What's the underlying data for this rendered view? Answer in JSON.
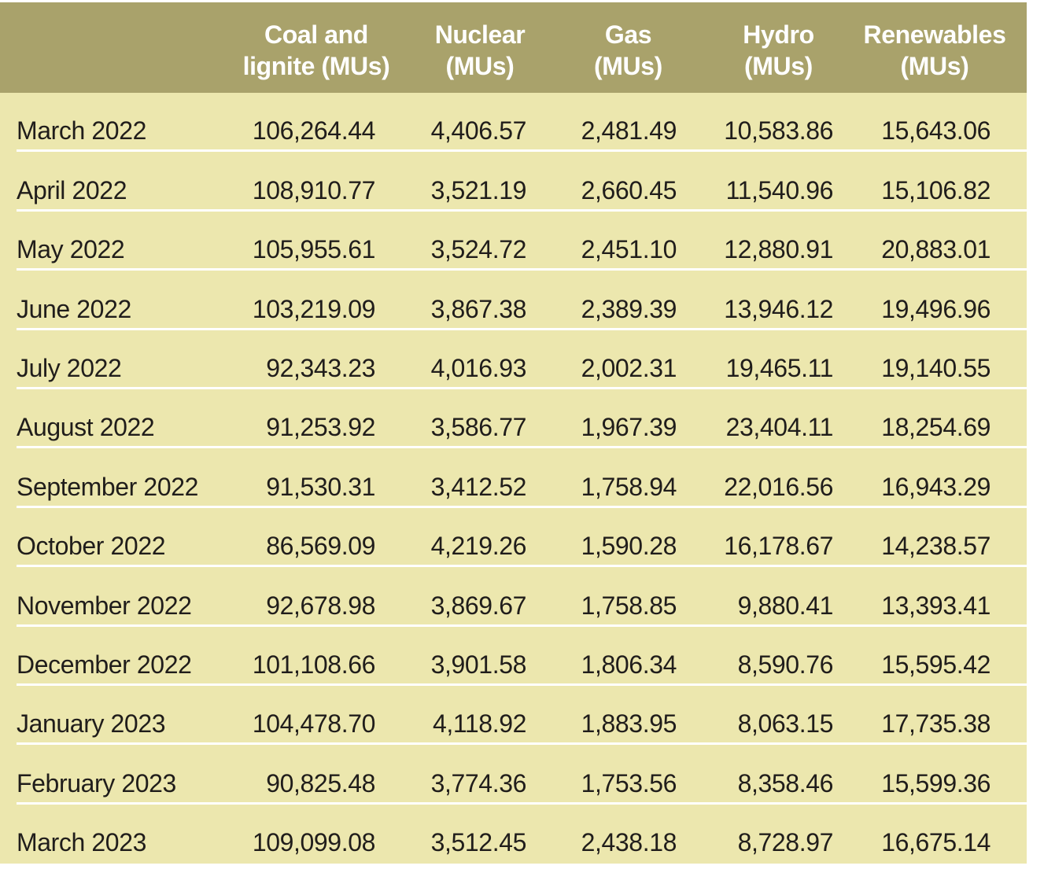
{
  "colors": {
    "header_bg": "#a9a26b",
    "body_bg": "#ece7ae",
    "header_text": "#ffffff",
    "body_text": "#201d1b",
    "separator": "#ffffff"
  },
  "table": {
    "headers": [
      {
        "line1": "",
        "line2": ""
      },
      {
        "line1": "Coal and",
        "line2": "lignite (MUs)"
      },
      {
        "line1": "Nuclear",
        "line2": "(MUs)"
      },
      {
        "line1": "Gas",
        "line2": "(MUs)"
      },
      {
        "line1": "Hydro",
        "line2": "(MUs)"
      },
      {
        "line1": "Renewables",
        "line2": "(MUs)"
      }
    ],
    "rows": [
      {
        "month": "March 2022",
        "coal": "106,264.44",
        "nuclear": "4,406.57",
        "gas": "2,481.49",
        "hydro": "10,583.86",
        "renewables": "15,643.06"
      },
      {
        "month": "April 2022",
        "coal": "108,910.77",
        "nuclear": "3,521.19",
        "gas": "2,660.45",
        "hydro": "11,540.96",
        "renewables": "15,106.82"
      },
      {
        "month": "May 2022",
        "coal": "105,955.61",
        "nuclear": "3,524.72",
        "gas": "2,451.10",
        "hydro": "12,880.91",
        "renewables": "20,883.01"
      },
      {
        "month": "June 2022",
        "coal": "103,219.09",
        "nuclear": "3,867.38",
        "gas": "2,389.39",
        "hydro": "13,946.12",
        "renewables": "19,496.96"
      },
      {
        "month": "July 2022",
        "coal": "92,343.23",
        "nuclear": "4,016.93",
        "gas": "2,002.31",
        "hydro": "19,465.11",
        "renewables": "19,140.55"
      },
      {
        "month": "August 2022",
        "coal": "91,253.92",
        "nuclear": "3,586.77",
        "gas": "1,967.39",
        "hydro": "23,404.11",
        "renewables": "18,254.69"
      },
      {
        "month": "September 2022",
        "coal": "91,530.31",
        "nuclear": "3,412.52",
        "gas": "1,758.94",
        "hydro": "22,016.56",
        "renewables": "16,943.29"
      },
      {
        "month": "October 2022",
        "coal": "86,569.09",
        "nuclear": "4,219.26",
        "gas": "1,590.28",
        "hydro": "16,178.67",
        "renewables": "14,238.57"
      },
      {
        "month": "November 2022",
        "coal": "92,678.98",
        "nuclear": "3,869.67",
        "gas": "1,758.85",
        "hydro": "9,880.41",
        "renewables": "13,393.41"
      },
      {
        "month": "December 2022",
        "coal": "101,108.66",
        "nuclear": "3,901.58",
        "gas": "1,806.34",
        "hydro": "8,590.76",
        "renewables": "15,595.42"
      },
      {
        "month": "January 2023",
        "coal": "104,478.70",
        "nuclear": "4,118.92",
        "gas": "1,883.95",
        "hydro": "8,063.15",
        "renewables": "17,735.38"
      },
      {
        "month": "February 2023",
        "coal": "90,825.48",
        "nuclear": "3,774.36",
        "gas": "1,753.56",
        "hydro": "8,358.46",
        "renewables": "15,599.36"
      },
      {
        "month": "March 2023",
        "coal": "109,099.08",
        "nuclear": "3,512.45",
        "gas": "2,438.18",
        "hydro": "8,728.97",
        "renewables": "16,675.14"
      }
    ]
  },
  "chart_data": {
    "type": "table",
    "title": "",
    "columns": [
      "",
      "Coal and lignite (MUs)",
      "Nuclear (MUs)",
      "Gas (MUs)",
      "Hydro (MUs)",
      "Renewables (MUs)"
    ],
    "rows": [
      [
        "March 2022",
        106264.44,
        4406.57,
        2481.49,
        10583.86,
        15643.06
      ],
      [
        "April 2022",
        108910.77,
        3521.19,
        2660.45,
        11540.96,
        15106.82
      ],
      [
        "May 2022",
        105955.61,
        3524.72,
        2451.1,
        12880.91,
        20883.01
      ],
      [
        "June 2022",
        103219.09,
        3867.38,
        2389.39,
        13946.12,
        19496.96
      ],
      [
        "July 2022",
        92343.23,
        4016.93,
        2002.31,
        19465.11,
        19140.55
      ],
      [
        "August 2022",
        91253.92,
        3586.77,
        1967.39,
        23404.11,
        18254.69
      ],
      [
        "September 2022",
        91530.31,
        3412.52,
        1758.94,
        22016.56,
        16943.29
      ],
      [
        "October 2022",
        86569.09,
        4219.26,
        1590.28,
        16178.67,
        14238.57
      ],
      [
        "November 2022",
        92678.98,
        3869.67,
        1758.85,
        9880.41,
        13393.41
      ],
      [
        "December 2022",
        101108.66,
        3901.58,
        1806.34,
        8590.76,
        15595.42
      ],
      [
        "January 2023",
        104478.7,
        4118.92,
        1883.95,
        8063.15,
        17735.38
      ],
      [
        "February 2023",
        90825.48,
        3774.36,
        1753.56,
        8358.46,
        15599.36
      ],
      [
        "March 2023",
        109099.08,
        3512.45,
        2438.18,
        8728.97,
        16675.14
      ]
    ]
  }
}
